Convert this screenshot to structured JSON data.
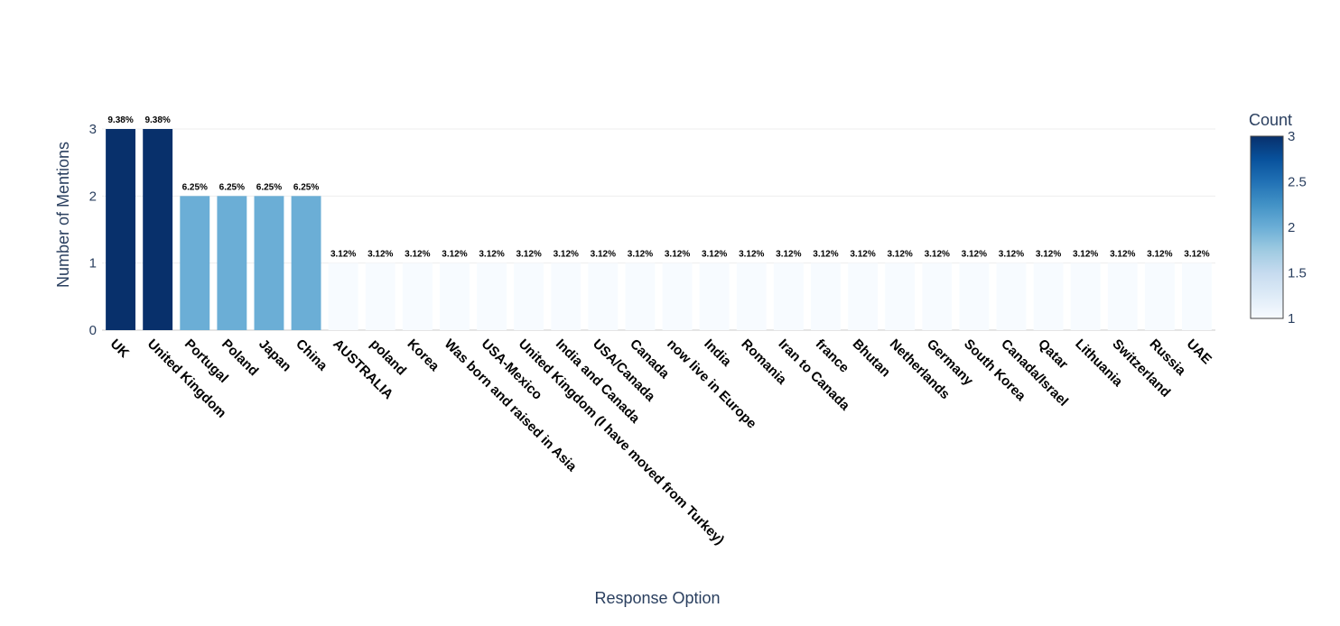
{
  "chart_data": {
    "type": "bar",
    "title": "",
    "xlabel": "Response Option",
    "ylabel": "Number of Mentions",
    "ylim": [
      0,
      3
    ],
    "y_ticks": [
      "0",
      "1",
      "2",
      "3"
    ],
    "grid": true,
    "categories": [
      "UK",
      "United Kingdom",
      "Portugal",
      "Poland",
      "Japan",
      "China",
      "AUSTRALIA",
      "poland",
      "Korea",
      "Was born and raised in Asia",
      "USA-Mexico",
      "United Kingdom (I have moved from Turkey)",
      "India and Canada",
      "USA/Canada",
      "Canada",
      "now live in Europe",
      "India",
      "Romania",
      "Iran to Canada",
      "france",
      "Bhutan",
      "Netherlands",
      "Germany",
      "South Korea",
      "Canada/Israel",
      "Qatar",
      "Lithuania",
      "Switzerland",
      "Russia",
      "UAE"
    ],
    "values": [
      3,
      3,
      2,
      2,
      2,
      2,
      1,
      1,
      1,
      1,
      1,
      1,
      1,
      1,
      1,
      1,
      1,
      1,
      1,
      1,
      1,
      1,
      1,
      1,
      1,
      1,
      1,
      1,
      1,
      1
    ],
    "labels": [
      "9.38%",
      "9.38%",
      "6.25%",
      "6.25%",
      "6.25%",
      "6.25%",
      "3.12%",
      "3.12%",
      "3.12%",
      "3.12%",
      "3.12%",
      "3.12%",
      "3.12%",
      "3.12%",
      "3.12%",
      "3.12%",
      "3.12%",
      "3.12%",
      "3.12%",
      "3.12%",
      "3.12%",
      "3.12%",
      "3.12%",
      "3.12%",
      "3.12%",
      "3.12%",
      "3.12%",
      "3.12%",
      "3.12%",
      "3.12%"
    ],
    "colorbar": {
      "title": "Count",
      "range": [
        1,
        3
      ],
      "ticks": [
        "1",
        "1.5",
        "2",
        "2.5",
        "3"
      ],
      "colors": [
        "#f7fbff",
        "#deebf7",
        "#c6dbef",
        "#9ecae1",
        "#6baed6",
        "#4292c6",
        "#2171b5",
        "#08519c",
        "#08306b"
      ]
    },
    "bar_colors": {
      "1": "#f7fbff",
      "2": "#6baed6",
      "3": "#08306b"
    }
  }
}
